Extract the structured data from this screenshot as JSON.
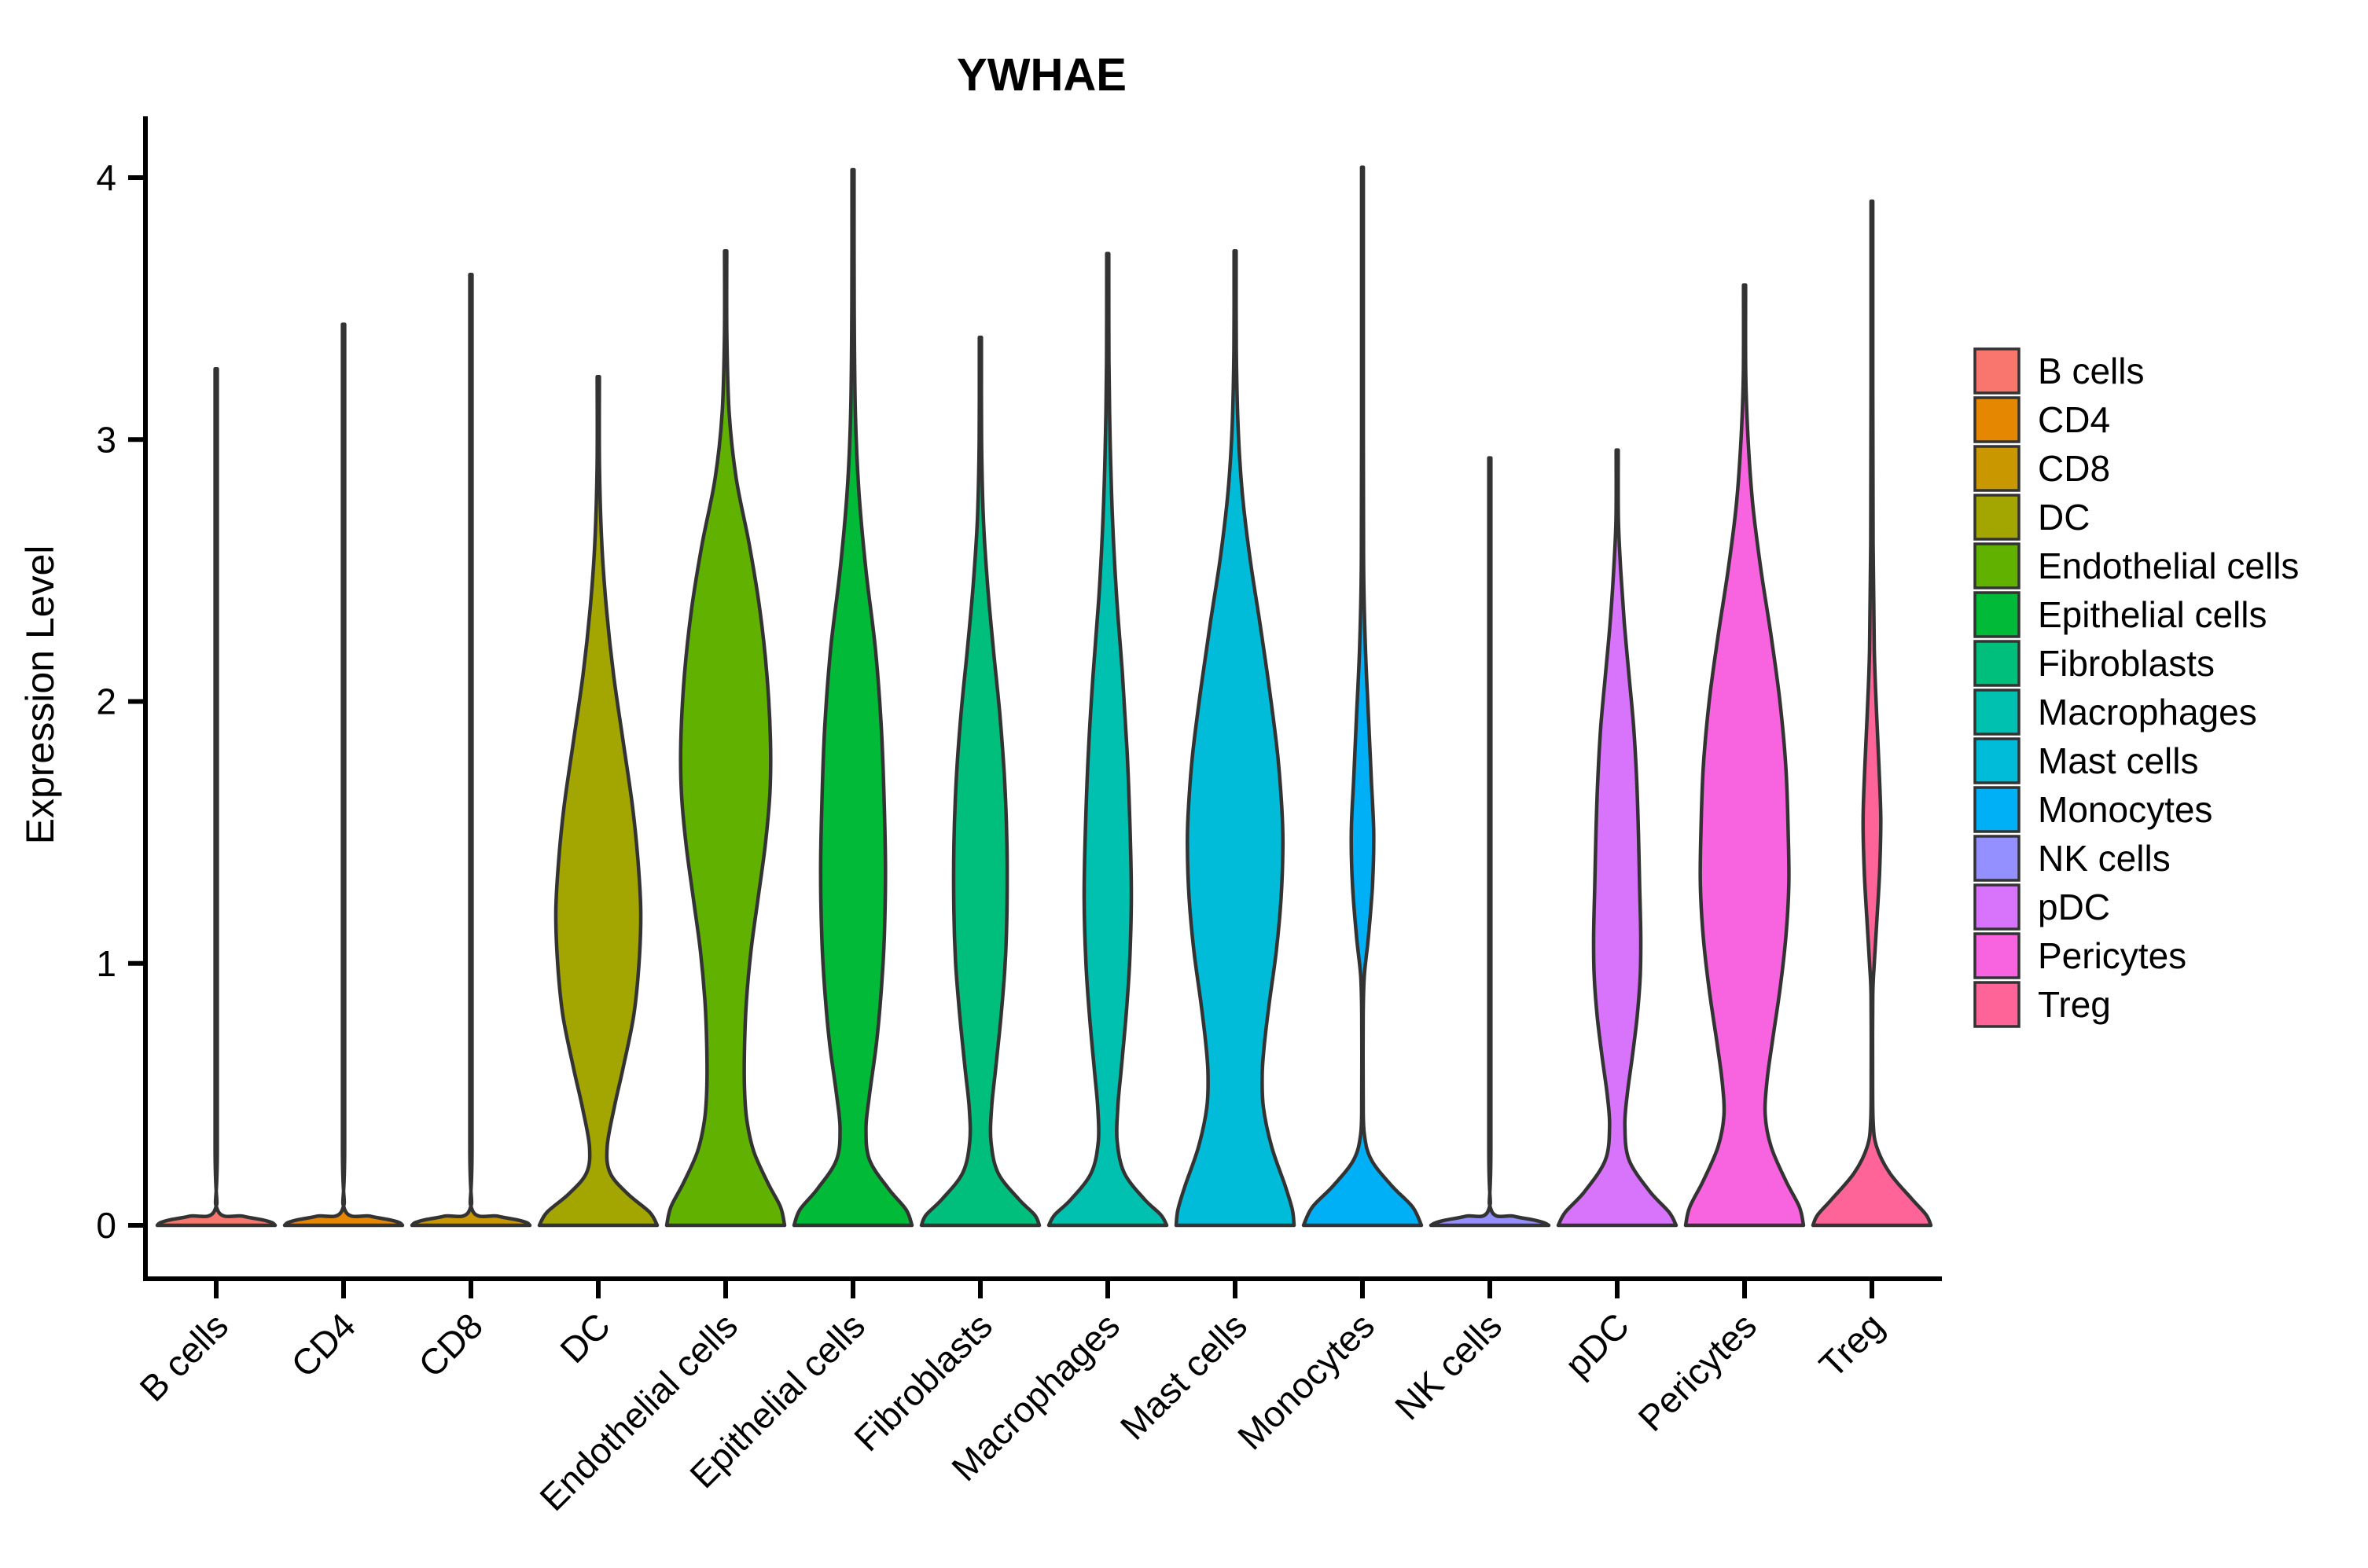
{
  "chart_data": {
    "type": "violin",
    "title": "YWHAE",
    "xlabel": "",
    "ylabel": "Expression Level",
    "ylim": [
      0,
      4.2
    ],
    "yticks": [
      0,
      1,
      2,
      3,
      4
    ],
    "grid": "off",
    "legend_position": "right",
    "outline_color": "#333333",
    "categories": [
      "B cells",
      "CD4",
      "CD8",
      "DC",
      "Endothelial cells",
      "Epithelial cells",
      "Fibroblasts",
      "Macrophages",
      "Mast cells",
      "Monocytes",
      "NK cells",
      "pDC",
      "Pericytes",
      "Treg"
    ],
    "series": [
      {
        "name": "B cells",
        "color": "#F8766D",
        "max": 3.27,
        "profile": [
          [
            3.27,
            0.018
          ],
          [
            1.5,
            0.018
          ],
          [
            0.3,
            0.018
          ],
          [
            0.06,
            0.02
          ],
          [
            0.035,
            0.45
          ],
          [
            0.02,
            0.8
          ],
          [
            0.01,
            0.95
          ],
          [
            0,
            1.0
          ]
        ]
      },
      {
        "name": "CD4",
        "color": "#E58700",
        "max": 3.44,
        "profile": [
          [
            3.44,
            0.018
          ],
          [
            1.5,
            0.018
          ],
          [
            0.3,
            0.018
          ],
          [
            0.06,
            0.02
          ],
          [
            0.035,
            0.45
          ],
          [
            0.02,
            0.8
          ],
          [
            0.01,
            0.95
          ],
          [
            0,
            1.0
          ]
        ]
      },
      {
        "name": "CD8",
        "color": "#C99800",
        "max": 3.63,
        "profile": [
          [
            3.63,
            0.018
          ],
          [
            1.5,
            0.018
          ],
          [
            0.3,
            0.018
          ],
          [
            0.06,
            0.02
          ],
          [
            0.035,
            0.45
          ],
          [
            0.02,
            0.8
          ],
          [
            0.01,
            0.95
          ],
          [
            0,
            1.0
          ]
        ]
      },
      {
        "name": "DC",
        "color": "#A3A500",
        "max": 3.24,
        "profile": [
          [
            3.24,
            0.018
          ],
          [
            2.9,
            0.02
          ],
          [
            2.6,
            0.06
          ],
          [
            2.35,
            0.14
          ],
          [
            2.1,
            0.26
          ],
          [
            1.85,
            0.42
          ],
          [
            1.6,
            0.58
          ],
          [
            1.4,
            0.67
          ],
          [
            1.2,
            0.72
          ],
          [
            1.0,
            0.69
          ],
          [
            0.8,
            0.6
          ],
          [
            0.6,
            0.42
          ],
          [
            0.45,
            0.27
          ],
          [
            0.3,
            0.15
          ],
          [
            0.2,
            0.2
          ],
          [
            0.12,
            0.5
          ],
          [
            0.05,
            0.87
          ],
          [
            0,
            1.0
          ]
        ]
      },
      {
        "name": "Endothelial cells",
        "color": "#61B200",
        "max": 3.72,
        "profile": [
          [
            3.72,
            0.018
          ],
          [
            3.4,
            0.02
          ],
          [
            3.1,
            0.06
          ],
          [
            2.85,
            0.18
          ],
          [
            2.6,
            0.4
          ],
          [
            2.35,
            0.58
          ],
          [
            2.1,
            0.7
          ],
          [
            1.85,
            0.76
          ],
          [
            1.65,
            0.75
          ],
          [
            1.45,
            0.67
          ],
          [
            1.25,
            0.55
          ],
          [
            1.05,
            0.43
          ],
          [
            0.85,
            0.35
          ],
          [
            0.68,
            0.32
          ],
          [
            0.52,
            0.32
          ],
          [
            0.4,
            0.36
          ],
          [
            0.28,
            0.48
          ],
          [
            0.16,
            0.72
          ],
          [
            0.07,
            0.93
          ],
          [
            0,
            1.0
          ]
        ]
      },
      {
        "name": "Epithelial cells",
        "color": "#00BA38",
        "max": 4.03,
        "profile": [
          [
            4.03,
            0.018
          ],
          [
            3.5,
            0.02
          ],
          [
            3.1,
            0.04
          ],
          [
            2.8,
            0.1
          ],
          [
            2.5,
            0.22
          ],
          [
            2.2,
            0.38
          ],
          [
            1.9,
            0.48
          ],
          [
            1.6,
            0.53
          ],
          [
            1.35,
            0.55
          ],
          [
            1.1,
            0.53
          ],
          [
            0.9,
            0.48
          ],
          [
            0.7,
            0.4
          ],
          [
            0.5,
            0.28
          ],
          [
            0.37,
            0.22
          ],
          [
            0.25,
            0.28
          ],
          [
            0.14,
            0.6
          ],
          [
            0.06,
            0.9
          ],
          [
            0,
            1.0
          ]
        ]
      },
      {
        "name": "Fibroblasts",
        "color": "#00BF7D",
        "max": 3.39,
        "profile": [
          [
            3.39,
            0.018
          ],
          [
            3.0,
            0.02
          ],
          [
            2.7,
            0.05
          ],
          [
            2.45,
            0.12
          ],
          [
            2.2,
            0.22
          ],
          [
            1.95,
            0.33
          ],
          [
            1.7,
            0.41
          ],
          [
            1.45,
            0.45
          ],
          [
            1.2,
            0.45
          ],
          [
            1.0,
            0.42
          ],
          [
            0.8,
            0.35
          ],
          [
            0.6,
            0.26
          ],
          [
            0.45,
            0.19
          ],
          [
            0.32,
            0.18
          ],
          [
            0.2,
            0.3
          ],
          [
            0.1,
            0.65
          ],
          [
            0.04,
            0.92
          ],
          [
            0,
            1.0
          ]
        ]
      },
      {
        "name": "Macrophages",
        "color": "#00C0AF",
        "max": 3.71,
        "profile": [
          [
            3.71,
            0.018
          ],
          [
            3.3,
            0.02
          ],
          [
            3.0,
            0.04
          ],
          [
            2.7,
            0.08
          ],
          [
            2.4,
            0.15
          ],
          [
            2.1,
            0.25
          ],
          [
            1.8,
            0.33
          ],
          [
            1.5,
            0.38
          ],
          [
            1.25,
            0.4
          ],
          [
            1.0,
            0.37
          ],
          [
            0.8,
            0.31
          ],
          [
            0.6,
            0.23
          ],
          [
            0.45,
            0.17
          ],
          [
            0.32,
            0.16
          ],
          [
            0.2,
            0.28
          ],
          [
            0.1,
            0.62
          ],
          [
            0.04,
            0.9
          ],
          [
            0,
            1.0
          ]
        ]
      },
      {
        "name": "Mast cells",
        "color": "#00BCD8",
        "max": 3.72,
        "profile": [
          [
            3.72,
            0.018
          ],
          [
            3.35,
            0.02
          ],
          [
            3.05,
            0.05
          ],
          [
            2.8,
            0.12
          ],
          [
            2.55,
            0.25
          ],
          [
            2.3,
            0.42
          ],
          [
            2.05,
            0.58
          ],
          [
            1.8,
            0.72
          ],
          [
            1.6,
            0.79
          ],
          [
            1.45,
            0.81
          ],
          [
            1.25,
            0.78
          ],
          [
            1.05,
            0.7
          ],
          [
            0.85,
            0.58
          ],
          [
            0.7,
            0.5
          ],
          [
            0.58,
            0.46
          ],
          [
            0.45,
            0.48
          ],
          [
            0.3,
            0.62
          ],
          [
            0.15,
            0.85
          ],
          [
            0.06,
            0.97
          ],
          [
            0,
            1.0
          ]
        ]
      },
      {
        "name": "Monocytes",
        "color": "#00B0F6",
        "max": 4.04,
        "profile": [
          [
            4.04,
            0.015
          ],
          [
            3.0,
            0.015
          ],
          [
            2.5,
            0.02
          ],
          [
            2.2,
            0.05
          ],
          [
            1.95,
            0.1
          ],
          [
            1.7,
            0.15
          ],
          [
            1.5,
            0.19
          ],
          [
            1.3,
            0.17
          ],
          [
            1.1,
            0.1
          ],
          [
            0.95,
            0.03
          ],
          [
            0.8,
            0.012
          ],
          [
            0.5,
            0.012
          ],
          [
            0.35,
            0.03
          ],
          [
            0.25,
            0.15
          ],
          [
            0.15,
            0.5
          ],
          [
            0.07,
            0.85
          ],
          [
            0,
            1.0
          ]
        ]
      },
      {
        "name": "NK cells",
        "color": "#9590FF",
        "max": 2.93,
        "profile": [
          [
            2.93,
            0.018
          ],
          [
            1.5,
            0.018
          ],
          [
            0.3,
            0.018
          ],
          [
            0.06,
            0.02
          ],
          [
            0.035,
            0.4
          ],
          [
            0.02,
            0.75
          ],
          [
            0.01,
            0.92
          ],
          [
            0,
            1.0
          ]
        ]
      },
      {
        "name": "pDC",
        "color": "#D873FC",
        "max": 2.96,
        "profile": [
          [
            2.96,
            0.018
          ],
          [
            2.7,
            0.02
          ],
          [
            2.5,
            0.06
          ],
          [
            2.3,
            0.12
          ],
          [
            2.1,
            0.2
          ],
          [
            1.9,
            0.28
          ],
          [
            1.7,
            0.33
          ],
          [
            1.5,
            0.36
          ],
          [
            1.3,
            0.38
          ],
          [
            1.1,
            0.4
          ],
          [
            0.95,
            0.39
          ],
          [
            0.8,
            0.34
          ],
          [
            0.65,
            0.26
          ],
          [
            0.5,
            0.17
          ],
          [
            0.38,
            0.13
          ],
          [
            0.25,
            0.2
          ],
          [
            0.13,
            0.55
          ],
          [
            0.05,
            0.88
          ],
          [
            0,
            1.0
          ]
        ]
      },
      {
        "name": "Pericytes",
        "color": "#F863DF",
        "max": 3.59,
        "profile": [
          [
            3.59,
            0.018
          ],
          [
            3.25,
            0.02
          ],
          [
            3.0,
            0.06
          ],
          [
            2.75,
            0.14
          ],
          [
            2.5,
            0.28
          ],
          [
            2.25,
            0.45
          ],
          [
            2.0,
            0.6
          ],
          [
            1.75,
            0.7
          ],
          [
            1.5,
            0.74
          ],
          [
            1.3,
            0.75
          ],
          [
            1.1,
            0.7
          ],
          [
            0.9,
            0.6
          ],
          [
            0.7,
            0.47
          ],
          [
            0.55,
            0.38
          ],
          [
            0.42,
            0.35
          ],
          [
            0.3,
            0.45
          ],
          [
            0.17,
            0.7
          ],
          [
            0.07,
            0.93
          ],
          [
            0,
            1.0
          ]
        ]
      },
      {
        "name": "Treg",
        "color": "#FF6498",
        "max": 3.91,
        "profile": [
          [
            3.91,
            0.015
          ],
          [
            3.2,
            0.015
          ],
          [
            2.6,
            0.02
          ],
          [
            2.2,
            0.04
          ],
          [
            1.95,
            0.08
          ],
          [
            1.75,
            0.12
          ],
          [
            1.55,
            0.15
          ],
          [
            1.35,
            0.13
          ],
          [
            1.15,
            0.08
          ],
          [
            1.0,
            0.04
          ],
          [
            0.88,
            0.015
          ],
          [
            0.6,
            0.012
          ],
          [
            0.4,
            0.02
          ],
          [
            0.3,
            0.08
          ],
          [
            0.2,
            0.3
          ],
          [
            0.1,
            0.68
          ],
          [
            0.04,
            0.92
          ],
          [
            0,
            1.0
          ]
        ]
      }
    ]
  }
}
